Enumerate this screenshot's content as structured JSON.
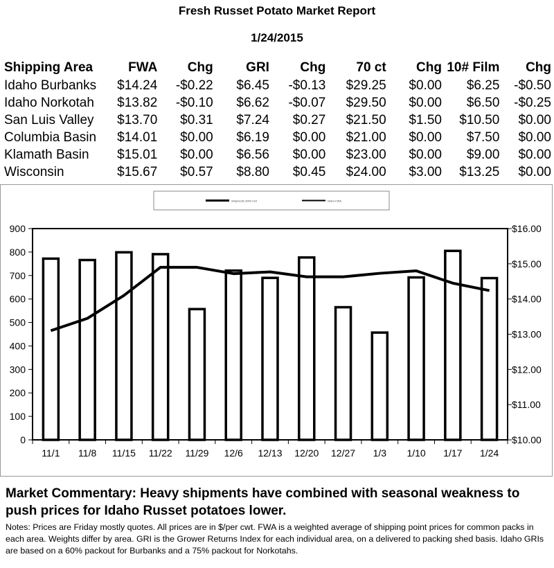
{
  "report": {
    "title": "Fresh Russet Potato Market Report",
    "date": "1/24/2015"
  },
  "table": {
    "headers": [
      "Shipping Area",
      "FWA",
      "Chg",
      "GRI",
      "Chg",
      "70 ct",
      "Chg",
      "10# Film",
      "Chg"
    ],
    "rows": [
      [
        "Idaho Burbanks",
        "$14.24",
        "-$0.22",
        "$6.45",
        "-$0.13",
        "$29.25",
        "$0.00",
        "$6.25",
        "-$0.50"
      ],
      [
        "Idaho Norkotah",
        "$13.82",
        "-$0.10",
        "$6.62",
        "-$0.07",
        "$29.50",
        "$0.00",
        "$6.50",
        "-$0.25"
      ],
      [
        "San Luis Valley",
        "$13.70",
        "$0.31",
        "$7.24",
        "$0.27",
        "$21.50",
        "$1.50",
        "$10.50",
        "$0.00"
      ],
      [
        "Columbia Basin",
        "$14.01",
        "$0.00",
        "$6.19",
        "$0.00",
        "$21.00",
        "$0.00",
        "$7.50",
        "$0.00"
      ],
      [
        "Klamath Basin",
        "$15.01",
        "$0.00",
        "$6.56",
        "$0.00",
        "$23.00",
        "$0.00",
        "$9.00",
        "$0.00"
      ],
      [
        "Wisconsin",
        "$15.67",
        "$0.57",
        "$8.80",
        "$0.45",
        "$24.00",
        "$3.00",
        "$13.25",
        "$0.00"
      ]
    ]
  },
  "chart_data": {
    "type": "bar",
    "categories": [
      "11/1",
      "11/8",
      "11/15",
      "11/22",
      "11/29",
      "12/6",
      "12/13",
      "12/20",
      "12/27",
      "1/3",
      "1/10",
      "1/17",
      "1/24"
    ],
    "series": [
      {
        "name": "Shipments 2000 Cwt",
        "type": "bar",
        "axis": "left",
        "values": [
          772,
          766,
          799,
          791,
          557,
          721,
          690,
          777,
          565,
          457,
          692,
          805,
          689
        ]
      },
      {
        "name": "Idaho FWA",
        "type": "line",
        "axis": "right",
        "values": [
          13.1,
          13.45,
          14.1,
          14.9,
          14.9,
          14.72,
          14.77,
          14.63,
          14.63,
          14.73,
          14.8,
          14.45,
          14.24
        ]
      }
    ],
    "ylim_left": [
      0,
      900
    ],
    "yticks_left": [
      "0",
      "100",
      "200",
      "300",
      "400",
      "500",
      "600",
      "700",
      "800",
      "900"
    ],
    "ylim_right": [
      10,
      16
    ],
    "yticks_right": [
      "$10.00",
      "$11.00",
      "$12.00",
      "$13.00",
      "$14.00",
      "$15.00",
      "$16.00"
    ],
    "legend_placement": "top-center",
    "grid": false
  },
  "commentary": "Market Commentary: Heavy shipments have combined with seasonal weakness to push prices for Idaho Russet potatoes lower.",
  "notes": "Notes: Prices are Friday mostly quotes. All prices are in $/per cwt. FWA is a weighted average of shipping point prices for  common packs in each area. Weights differ by area. GRI is the Grower Returns Index for each individual area, on a delivered to packing shed basis. Idaho GRIs are based on a 60% packout for Burbanks and a 75% packout for Norkotahs."
}
